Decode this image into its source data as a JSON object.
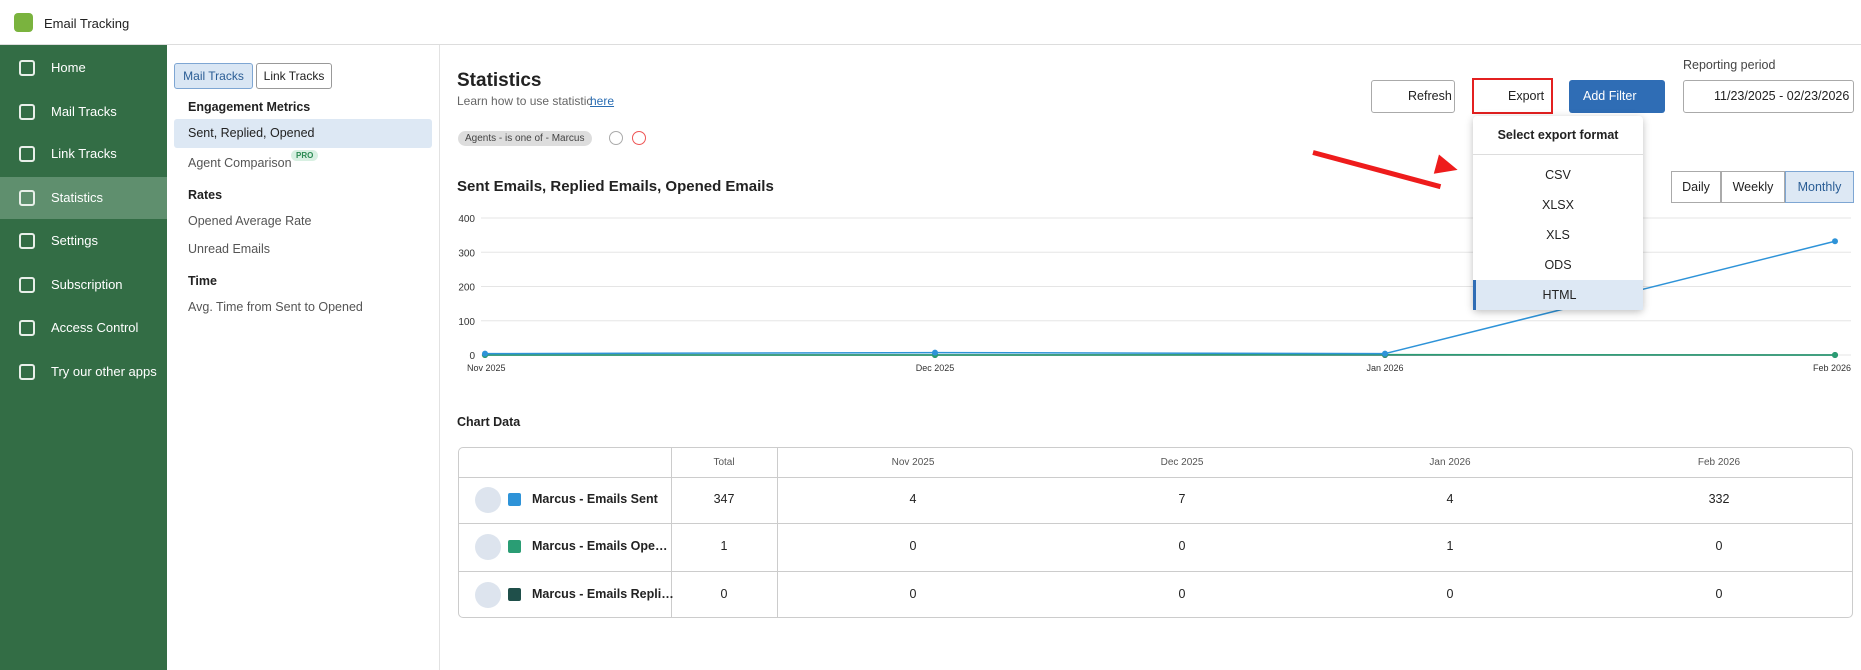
{
  "app": {
    "title": "Email Tracking"
  },
  "sidebar": {
    "items": [
      "Home",
      "Mail Tracks",
      "Link Tracks",
      "Statistics",
      "Settings",
      "Subscription",
      "Access Control",
      "Try our other apps"
    ],
    "active": 3
  },
  "subnav": {
    "tabs": [
      "Mail Tracks",
      "Link Tracks"
    ],
    "active_tab": 0,
    "badge": "PRO",
    "sections": [
      {
        "heading": "Engagement Metrics",
        "items": [
          "Sent, Replied, Opened",
          "Agent Comparison"
        ]
      },
      {
        "heading": "Rates",
        "items": [
          "Opened Average Rate",
          "Unread Emails"
        ]
      },
      {
        "heading": "Time",
        "items": [
          "Avg. Time from Sent to Opened"
        ]
      }
    ]
  },
  "header": {
    "title": "Statistics",
    "help_text": "Learn how to use statistic",
    "help_link": "here",
    "refresh": "Refresh",
    "export": "Export",
    "add_filter": "Add Filter",
    "period_label": "Reporting period",
    "period": "11/23/2025 - 02/23/2026"
  },
  "filter": "Agents - is one of - Marcus",
  "export_menu": {
    "title": "Select export format",
    "options": [
      "CSV",
      "XLSX",
      "XLS",
      "ODS",
      "HTML"
    ],
    "highlighted": 4
  },
  "granularity": {
    "options": [
      "Daily",
      "Weekly",
      "Monthly"
    ],
    "active": 2
  },
  "chart_data": {
    "type": "line",
    "title": "Sent Emails, Replied Emails, Opened Emails",
    "categories": [
      "Nov 2025",
      "Dec 2025",
      "Jan 2026",
      "Feb 2026"
    ],
    "series": [
      {
        "color": "#2e93d8",
        "values": [
          4,
          7,
          4,
          332
        ]
      },
      {
        "color": "#2a9d74",
        "values": [
          0,
          0,
          1,
          0
        ]
      },
      {
        "color": "#1f4f4a",
        "values": [
          0,
          0,
          0,
          0
        ]
      }
    ],
    "ylim": [
      0,
      400
    ],
    "yticks": [
      0,
      100,
      200,
      300,
      400
    ],
    "grid": true
  },
  "table": {
    "title": "Chart Data",
    "columns": [
      "Total",
      "Nov 2025",
      "Dec 2025",
      "Jan 2026",
      "Feb 2026"
    ],
    "rows": [
      {
        "name": "Marcus - Emails Sent",
        "cells": [
          347,
          4,
          7,
          4,
          332
        ]
      },
      {
        "name": "Marcus - Emails Ope…",
        "cells": [
          1,
          0,
          0,
          1,
          0
        ]
      },
      {
        "name": "Marcus - Emails Repli…",
        "cells": [
          0,
          0,
          0,
          0,
          0
        ]
      }
    ]
  }
}
